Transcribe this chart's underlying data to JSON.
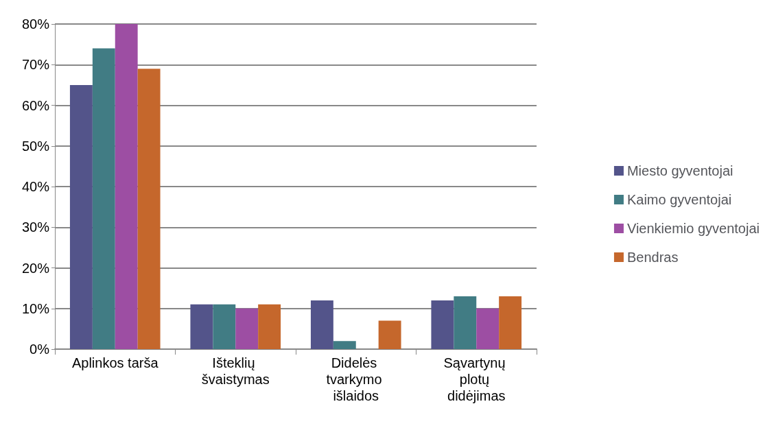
{
  "chart_data": {
    "type": "bar",
    "categories": [
      "Aplinkos tarša",
      "Išteklių švaistymas",
      "Didelės tvarkymo išlaidos",
      "Sąvartynų plotų didėjimas"
    ],
    "series": [
      {
        "name": "Miesto gyventojai",
        "color": "#53548a",
        "values": [
          65,
          11,
          12,
          12
        ]
      },
      {
        "name": "Kaimo gyventojai",
        "color": "#417c84",
        "values": [
          74,
          11,
          2,
          13
        ]
      },
      {
        "name": "Vienkiemio gyventojai",
        "color": "#9d4ea3",
        "values": [
          80,
          10,
          0,
          10
        ]
      },
      {
        "name": "Bendras",
        "color": "#c5672c",
        "values": [
          69,
          11,
          7,
          13
        ]
      }
    ],
    "ylim": [
      0,
      80
    ],
    "yticks": [
      {
        "value": 0,
        "label": "0%"
      },
      {
        "value": 10,
        "label": "10%"
      },
      {
        "value": 20,
        "label": "20%"
      },
      {
        "value": 30,
        "label": "30%"
      },
      {
        "value": 40,
        "label": "40%"
      },
      {
        "value": 50,
        "label": "50%"
      },
      {
        "value": 60,
        "label": "60%"
      },
      {
        "value": 70,
        "label": "70%"
      },
      {
        "value": 80,
        "label": "80%"
      }
    ],
    "grid": "y",
    "legend": "right"
  }
}
